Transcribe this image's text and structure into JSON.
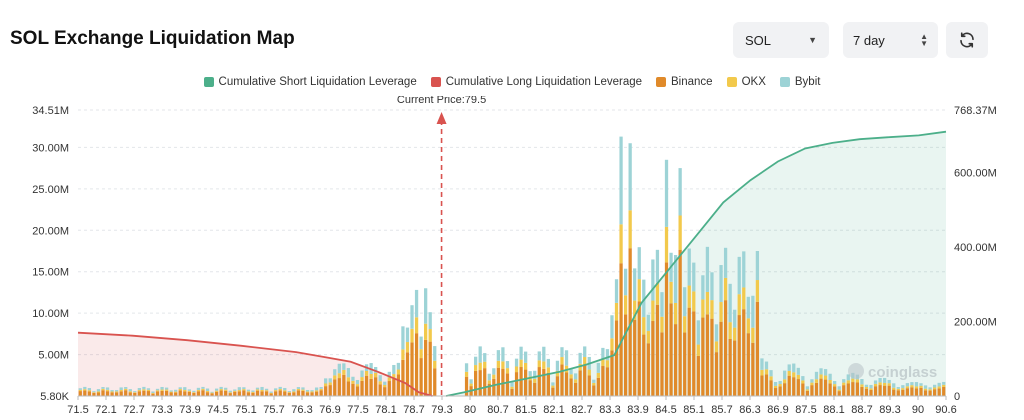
{
  "header": {
    "title": "SOL Exchange Liquidation Map",
    "symbol_value": "SOL",
    "range_value": "7 day",
    "refresh_icon": "refresh-icon"
  },
  "legend": [
    {
      "label": "Cumulative Short Liquidation Leverage",
      "color": "#4caf8a"
    },
    {
      "label": "Cumulative Long Liquidation Leverage",
      "color": "#d9534f"
    },
    {
      "label": "Binance",
      "color": "#e08a2a"
    },
    {
      "label": "OKX",
      "color": "#f2c94c"
    },
    {
      "label": "Bybit",
      "color": "#9dd3d6"
    }
  ],
  "watermark": "coinglass",
  "chart_data": {
    "type": "bar",
    "current_price_label": "Current Price:79.5",
    "current_price": 79.5,
    "x_ticks": [
      "71.5",
      "72.1",
      "72.7",
      "73.3",
      "73.9",
      "74.5",
      "75.1",
      "75.7",
      "76.3",
      "76.9",
      "77.5",
      "78.1",
      "78.7",
      "79.3",
      "80",
      "80.7",
      "81.5",
      "82.1",
      "82.7",
      "83.3",
      "83.9",
      "84.5",
      "85.1",
      "85.7",
      "86.3",
      "86.9",
      "87.5",
      "88.1",
      "88.7",
      "89.3",
      "90",
      "90.6"
    ],
    "xlim": [
      71.5,
      90.6
    ],
    "y_left_ticks": [
      "5.80K",
      "5.00M",
      "10.00M",
      "15.00M",
      "20.00M",
      "25.00M",
      "30.00M",
      "34.51M"
    ],
    "y_left_range": [
      0,
      34.51
    ],
    "y_right_ticks": [
      "0",
      "200.00M",
      "400.00M",
      "600.00M",
      "768.37M"
    ],
    "y_right_range": [
      0,
      768.37
    ],
    "bar_stacks": [
      "Binance",
      "OKX",
      "Bybit"
    ],
    "bar_totals_peaks": [
      {
        "price": 83.4,
        "total": 31.3
      },
      {
        "price": 83.6,
        "total": 30.5
      },
      {
        "price": 84.4,
        "total": 28.5
      },
      {
        "price": 84.7,
        "total": 27.5
      },
      {
        "price": 78.9,
        "total": 12.8
      },
      {
        "price": 79.1,
        "total": 13.0
      }
    ],
    "series": [
      {
        "name": "Cumulative Long Liquidation Leverage",
        "axis": "right",
        "x": [
          71.5,
          72.7,
          73.9,
          75.1,
          76.3,
          76.9,
          77.5,
          78.1,
          78.7,
          79.0,
          79.3
        ],
        "values": [
          170,
          162,
          150,
          135,
          118,
          105,
          92,
          65,
          35,
          10,
          0
        ]
      },
      {
        "name": "Cumulative Short Liquidation Leverage",
        "axis": "right",
        "x": [
          79.6,
          80.0,
          80.7,
          81.5,
          82.1,
          82.7,
          83.3,
          83.9,
          84.5,
          85.1,
          85.7,
          86.3,
          86.9,
          87.5,
          88.1,
          88.7,
          89.3,
          90.0,
          90.6
        ],
        "values": [
          0,
          10,
          30,
          50,
          65,
          85,
          110,
          250,
          340,
          430,
          520,
          580,
          630,
          665,
          680,
          690,
          695,
          700,
          710
        ]
      }
    ]
  }
}
